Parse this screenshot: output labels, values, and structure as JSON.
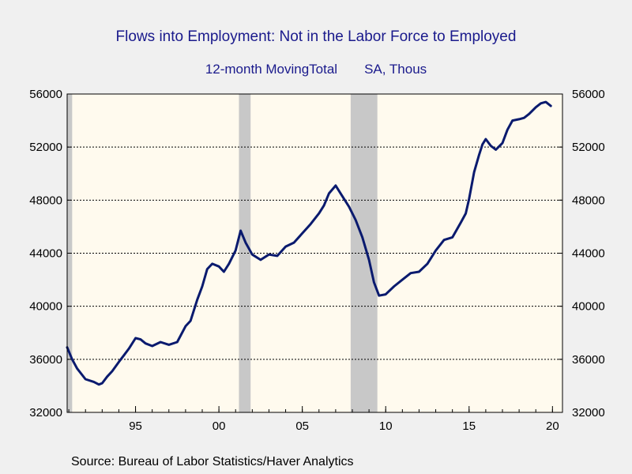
{
  "chart_data": {
    "type": "line",
    "title": "Flows into Employment: Not in the Labor Force to Employed",
    "subtitle_left": "12-month MovingTotal",
    "subtitle_right": "SA, Thous",
    "source": "Source:  Bureau of Labor Statistics/Haver Analytics",
    "xlabel": "",
    "ylabel": "",
    "xlim": [
      1990.9,
      2020.6
    ],
    "ylim": [
      32000,
      56000
    ],
    "yticks": [
      32000,
      36000,
      40000,
      44000,
      48000,
      52000,
      56000
    ],
    "ytick_labels": [
      "32000",
      "36000",
      "40000",
      "44000",
      "48000",
      "52000",
      "56000"
    ],
    "xticks": [
      {
        "value": 1995,
        "label": "95"
      },
      {
        "value": 2000,
        "label": "00"
      },
      {
        "value": 2005,
        "label": "05"
      },
      {
        "value": 2010,
        "label": "10"
      },
      {
        "value": 2015,
        "label": "15"
      },
      {
        "value": 2020,
        "label": "20"
      }
    ],
    "grid": "horizontal dashed",
    "recessions": [
      {
        "start": 1990.9,
        "end": 1991.2
      },
      {
        "start": 2001.2,
        "end": 2001.9
      },
      {
        "start": 2007.9,
        "end": 2009.5
      }
    ],
    "colors": {
      "line": "#0a1a6e",
      "recession": "#c8c8c8",
      "plot_bg": "#fffaee",
      "title": "#1a1a8c"
    },
    "series": [
      {
        "name": "",
        "x": [
          1990.9,
          1991.2,
          1991.5,
          1992.0,
          1992.5,
          1992.8,
          1993.0,
          1993.3,
          1993.6,
          1994.0,
          1994.3,
          1994.6,
          1995.0,
          1995.3,
          1995.6,
          1996.0,
          1996.5,
          1997.0,
          1997.5,
          1998.0,
          1998.3,
          1998.7,
          1999.0,
          1999.3,
          1999.6,
          2000.0,
          2000.3,
          2000.6,
          2001.0,
          2001.3,
          2001.6,
          2002.0,
          2002.5,
          2003.0,
          2003.5,
          2004.0,
          2004.5,
          2005.0,
          2005.5,
          2006.0,
          2006.3,
          2006.6,
          2007.0,
          2007.4,
          2007.8,
          2008.2,
          2008.6,
          2009.0,
          2009.3,
          2009.6,
          2010.0,
          2010.5,
          2011.0,
          2011.5,
          2012.0,
          2012.5,
          2013.0,
          2013.5,
          2014.0,
          2014.5,
          2014.8,
          2015.0,
          2015.3,
          2015.6,
          2015.8,
          2016.0,
          2016.3,
          2016.6,
          2017.0,
          2017.3,
          2017.6,
          2018.0,
          2018.3,
          2018.6,
          2019.0,
          2019.3,
          2019.6,
          2019.9
        ],
        "y": [
          36900,
          36000,
          35300,
          34500,
          34300,
          34100,
          34200,
          34700,
          35100,
          35800,
          36300,
          36800,
          37600,
          37500,
          37200,
          37000,
          37300,
          37100,
          37300,
          38500,
          38900,
          40500,
          41500,
          42800,
          43200,
          43000,
          42600,
          43200,
          44200,
          45700,
          44800,
          43900,
          43500,
          43900,
          43800,
          44500,
          44800,
          45500,
          46200,
          47000,
          47600,
          48500,
          49100,
          48300,
          47500,
          46500,
          45200,
          43500,
          41800,
          40800,
          40900,
          41500,
          42000,
          42500,
          42600,
          43200,
          44200,
          45000,
          45200,
          46300,
          47000,
          48100,
          50100,
          51400,
          52200,
          52600,
          52100,
          51800,
          52300,
          53300,
          54000,
          54100,
          54200,
          54500,
          55000,
          55300,
          55400,
          55100
        ]
      }
    ]
  }
}
